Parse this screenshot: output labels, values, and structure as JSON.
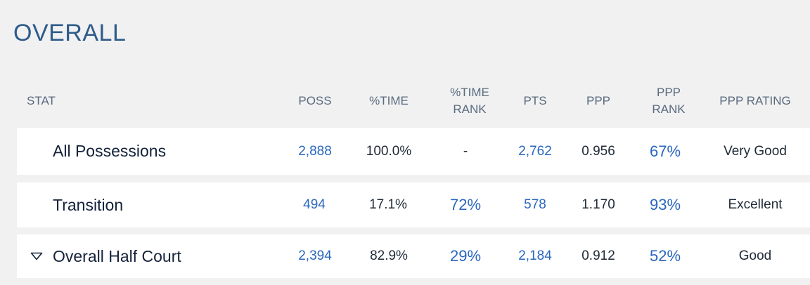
{
  "title": "OVERALL",
  "headers": {
    "stat": "STAT",
    "poss": "POSS",
    "time": "%TIME",
    "time_rank_l1": "%TIME",
    "time_rank_l2": "RANK",
    "pts": "PTS",
    "ppp": "PPP",
    "ppp_rank_l1": "PPP",
    "ppp_rank_l2": "RANK",
    "ppp_rating": "PPP RATING"
  },
  "rows": [
    {
      "name": "All Possessions",
      "poss": "2,888",
      "time": "100.0%",
      "time_rank": "-",
      "pts": "2,762",
      "ppp": "0.956",
      "ppp_rank": "67%",
      "rating": "Very Good"
    },
    {
      "name": "Transition",
      "poss": "494",
      "time": "17.1%",
      "time_rank": "72%",
      "pts": "578",
      "ppp": "1.170",
      "ppp_rank": "93%",
      "rating": "Excellent"
    },
    {
      "name": "Overall Half Court",
      "poss": "2,394",
      "time": "82.9%",
      "time_rank": "29%",
      "pts": "2,184",
      "ppp": "0.912",
      "ppp_rank": "52%",
      "rating": "Good"
    }
  ],
  "icons": {
    "expand": "triangle-down-outline-icon"
  },
  "colors": {
    "title": "#2e5b8a",
    "link": "#2a67bf",
    "header": "#5a6b7e",
    "background": "#f1f1f2"
  }
}
